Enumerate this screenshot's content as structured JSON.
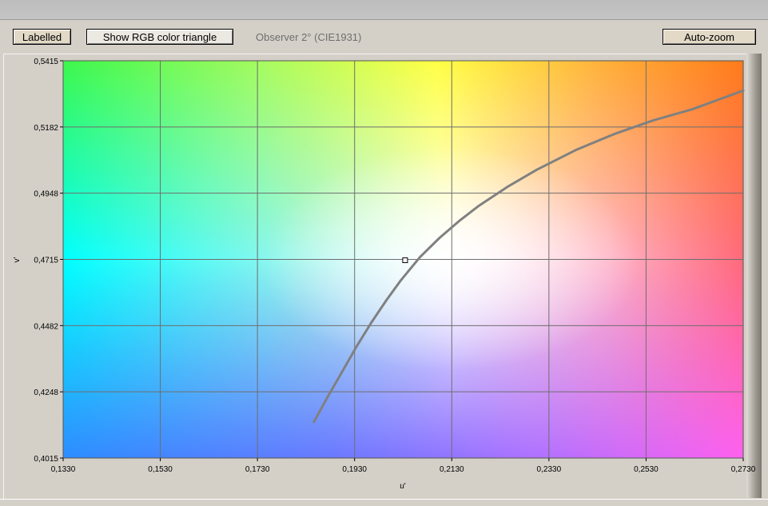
{
  "toolbar": {
    "labelled_label": "Labelled",
    "rgb_triangle_label": "Show RGB color triangle",
    "observer_text": "Observer 2° (CIE1931)",
    "autozoom_label": "Auto-zoom"
  },
  "chart_data": {
    "type": "line",
    "title": "",
    "xlabel": "u'",
    "ylabel": "v'",
    "xlim": [
      0.133,
      0.273
    ],
    "ylim": [
      0.4015,
      0.5415
    ],
    "x_ticks": [
      "0,1330",
      "0,1530",
      "0,1730",
      "0,1930",
      "0,2130",
      "0,2330",
      "0,2530",
      "0,2730"
    ],
    "y_ticks": [
      "0,5415",
      "0,5182",
      "0,4948",
      "0,4715",
      "0,4482",
      "0,4248",
      "0,4015"
    ],
    "grid": true,
    "background": "CIE 1976 u'v' chromaticity colour field",
    "series": [
      {
        "color": "#808080",
        "x": [
          0.1846,
          0.1875,
          0.1905,
          0.1935,
          0.1965,
          0.1995,
          0.2025,
          0.2065,
          0.2105,
          0.2145,
          0.2185,
          0.2245,
          0.2305,
          0.2385,
          0.2465,
          0.2545,
          0.2625,
          0.273
        ],
        "y": [
          0.4142,
          0.4232,
          0.4321,
          0.4411,
          0.4494,
          0.457,
          0.4641,
          0.4724,
          0.4791,
          0.485,
          0.4903,
          0.4971,
          0.5031,
          0.51,
          0.5157,
          0.5205,
          0.5244,
          0.531
        ]
      }
    ],
    "marker": {
      "x": 0.2034,
      "y": 0.4712
    }
  }
}
